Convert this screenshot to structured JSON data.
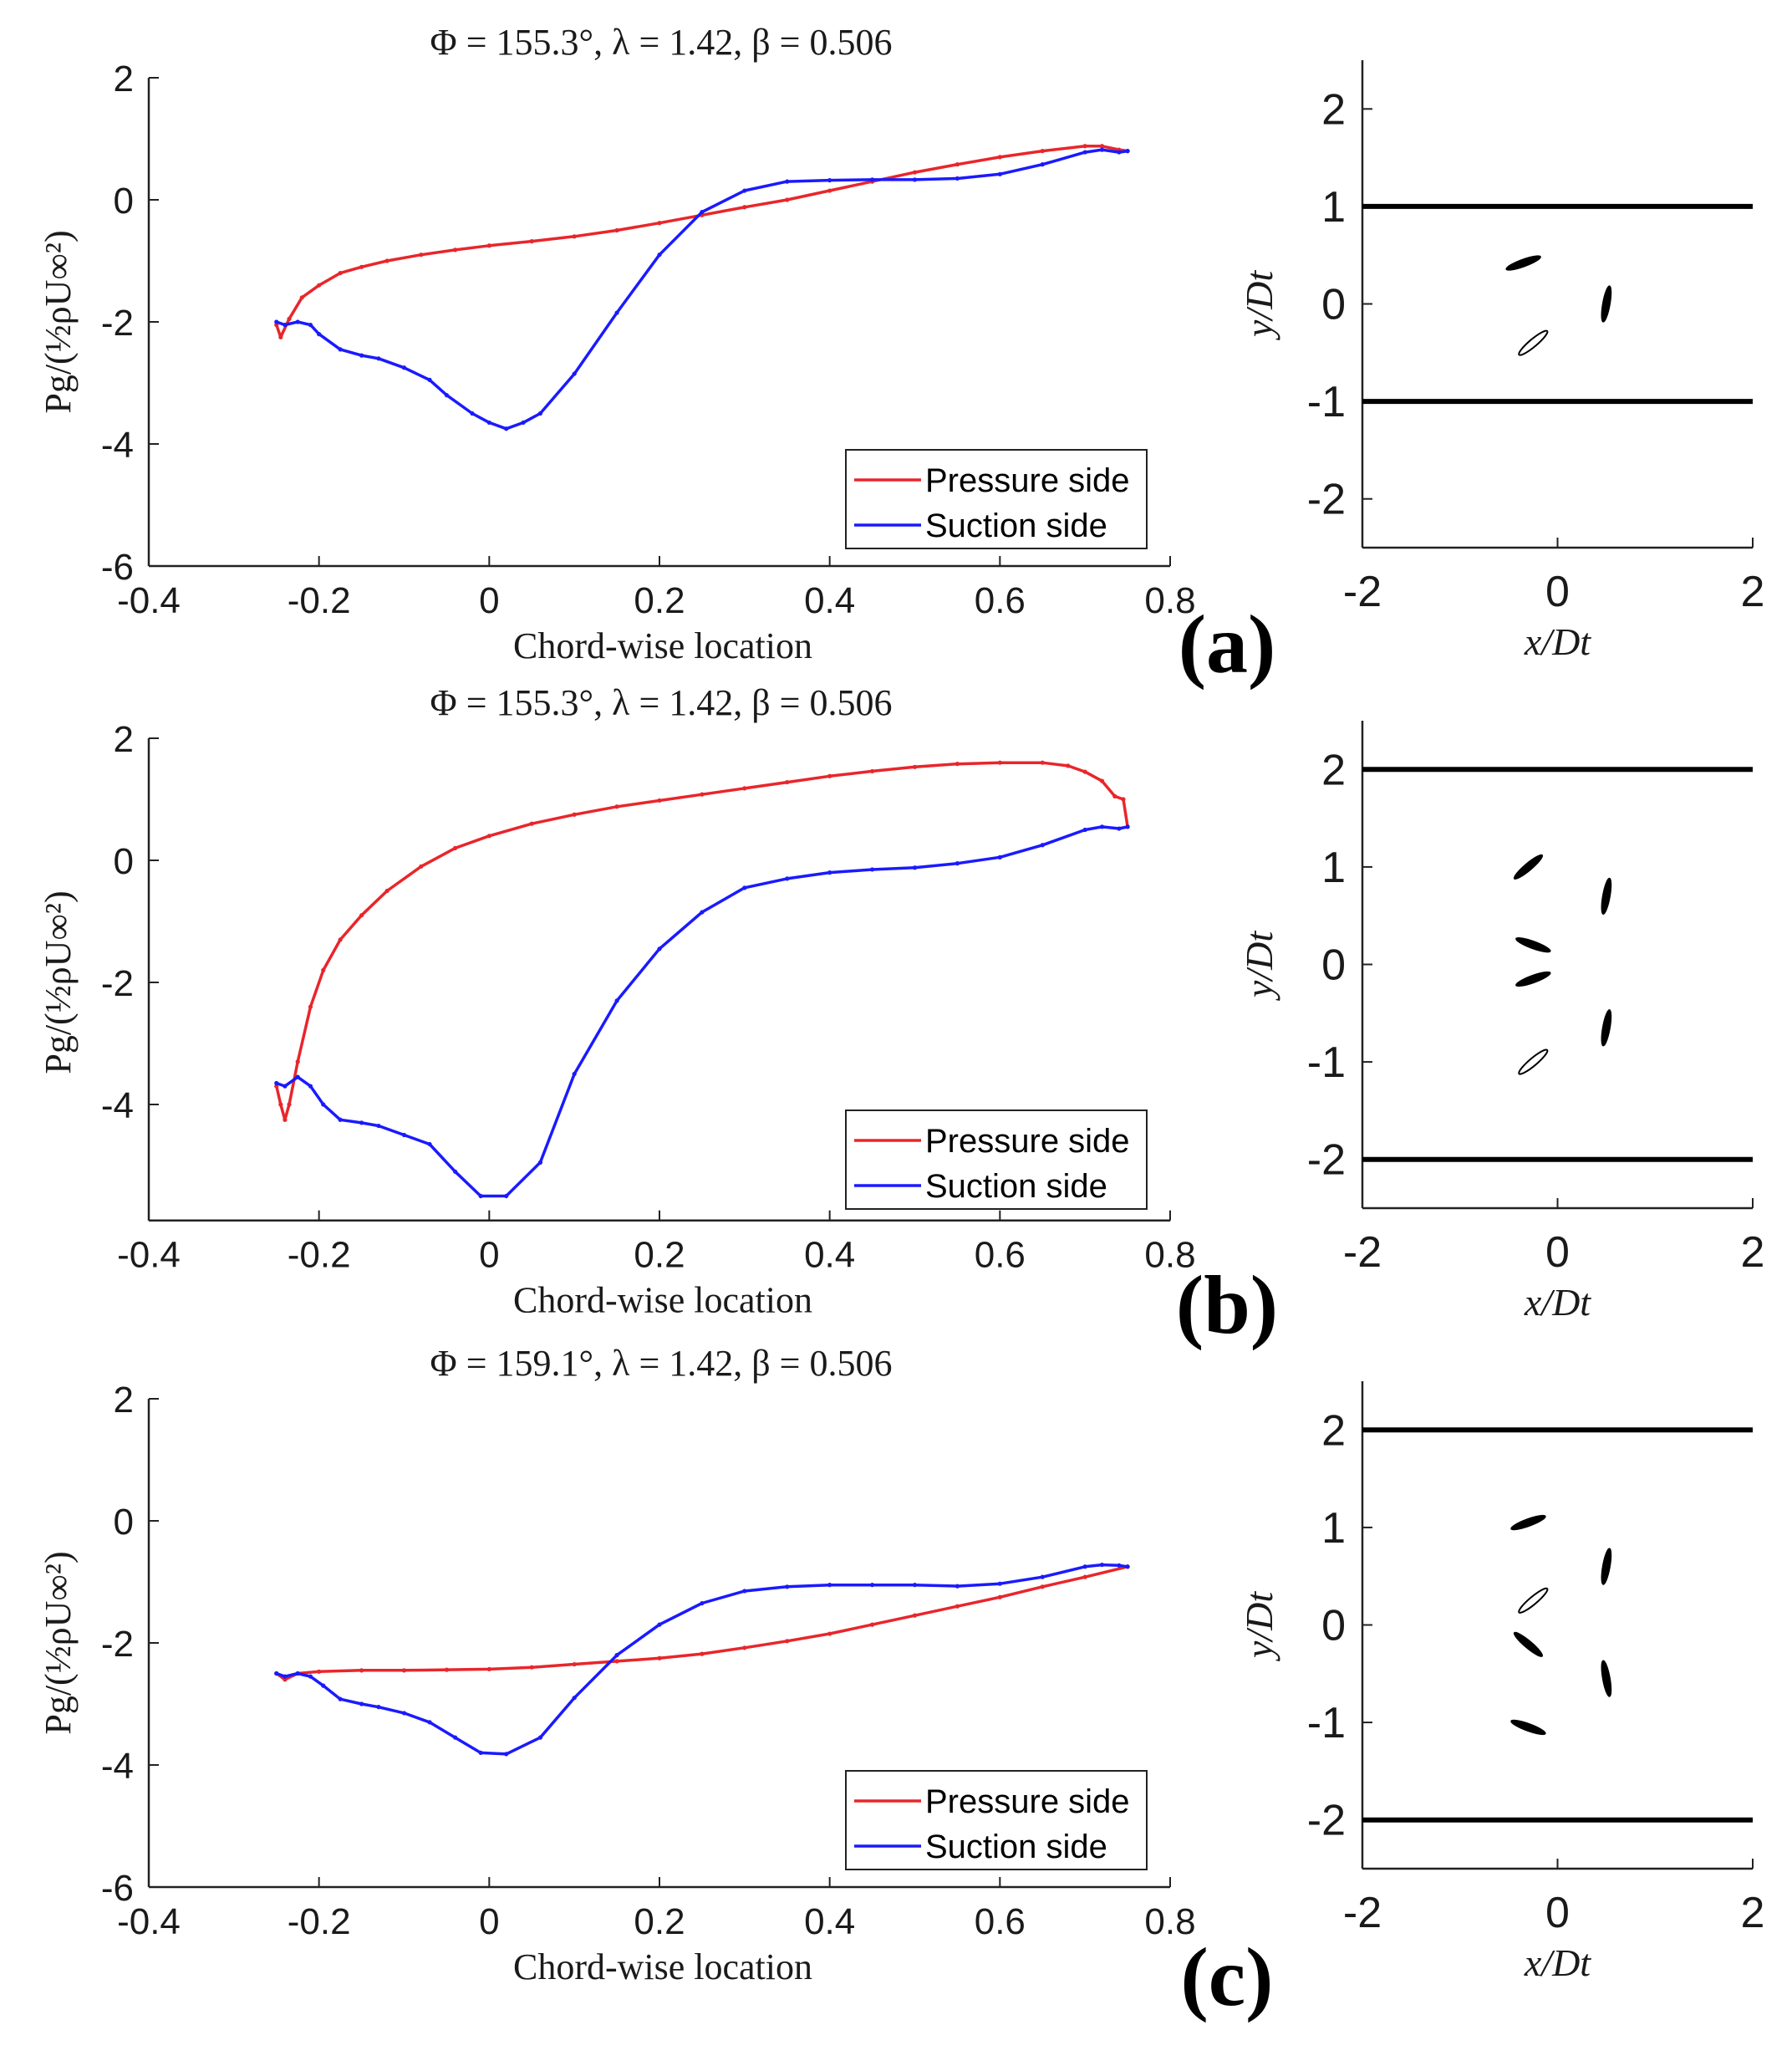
{
  "chart_data": [
    {
      "panel": "(a)",
      "title": "Φ = 155.3°, λ = 1.42, β = 0.506",
      "pressure": {
        "type": "line",
        "xlabel": "Chord-wise location",
        "ylabel": "Pg/(½ρU∞²)",
        "xlim": [
          -0.4,
          0.8
        ],
        "ylim": [
          -6,
          2
        ],
        "xticks": [
          -0.4,
          -0.2,
          0,
          0.2,
          0.4,
          0.6,
          0.8
        ],
        "xtick_labels": [
          "-0.4",
          "-0.2",
          "0",
          "0.2",
          "0.4",
          "0.6",
          "0.8"
        ],
        "yticks": [
          -6,
          -4,
          -2,
          0,
          2
        ],
        "ytick_labels": [
          "-6",
          "-4",
          "-2",
          "0",
          "2"
        ],
        "legend_position": "bottom-right",
        "series": [
          {
            "name": "Pressure side",
            "color": "#e8262b",
            "x": [
              -0.25,
              -0.245,
              -0.235,
              -0.22,
              -0.2,
              -0.175,
              -0.15,
              -0.12,
              -0.08,
              -0.04,
              0.0,
              0.05,
              0.1,
              0.15,
              0.2,
              0.25,
              0.3,
              0.35,
              0.4,
              0.45,
              0.5,
              0.55,
              0.6,
              0.65,
              0.7,
              0.72,
              0.74,
              0.75
            ],
            "y": [
              -2.05,
              -2.25,
              -1.95,
              -1.6,
              -1.4,
              -1.2,
              -1.1,
              -1.0,
              -0.9,
              -0.82,
              -0.75,
              -0.68,
              -0.6,
              -0.5,
              -0.38,
              -0.25,
              -0.12,
              0.0,
              0.15,
              0.3,
              0.45,
              0.58,
              0.7,
              0.8,
              0.88,
              0.88,
              0.82,
              0.8
            ]
          },
          {
            "name": "Suction side",
            "color": "#1a1aff",
            "x": [
              -0.25,
              -0.24,
              -0.225,
              -0.21,
              -0.2,
              -0.175,
              -0.15,
              -0.13,
              -0.1,
              -0.07,
              -0.05,
              -0.02,
              0.0,
              0.02,
              0.04,
              0.06,
              0.1,
              0.15,
              0.2,
              0.25,
              0.3,
              0.35,
              0.4,
              0.45,
              0.5,
              0.55,
              0.6,
              0.65,
              0.7,
              0.72,
              0.74,
              0.75
            ],
            "y": [
              -2.0,
              -2.05,
              -2.0,
              -2.05,
              -2.2,
              -2.45,
              -2.55,
              -2.6,
              -2.75,
              -2.95,
              -3.2,
              -3.5,
              -3.65,
              -3.75,
              -3.65,
              -3.5,
              -2.85,
              -1.85,
              -0.9,
              -0.2,
              0.15,
              0.3,
              0.32,
              0.33,
              0.33,
              0.35,
              0.42,
              0.58,
              0.78,
              0.82,
              0.78,
              0.8
            ]
          }
        ]
      },
      "config": {
        "type": "scatter",
        "xlabel": "x/Dt",
        "ylabel": "y/Dt",
        "xlim": [
          -2,
          2
        ],
        "ylim": [
          -2.5,
          2.5
        ],
        "xticks": [
          -2,
          0,
          2
        ],
        "xtick_labels": [
          "-2",
          "0",
          "2"
        ],
        "yticks": [
          -2,
          -1,
          0,
          1,
          2
        ],
        "ytick_labels": [
          "-2",
          "-1",
          "0",
          "1",
          "2"
        ],
        "walls_y": [
          -1,
          1
        ],
        "blades": [
          {
            "x": -0.35,
            "y": 0.42,
            "angle": 20,
            "filled": true
          },
          {
            "x": 0.5,
            "y": 0.0,
            "angle": 80,
            "filled": true
          },
          {
            "x": -0.25,
            "y": -0.4,
            "angle": 40,
            "filled": false
          }
        ]
      }
    },
    {
      "panel": "(b)",
      "title": "Φ = 155.3°, λ = 1.42, β = 0.506",
      "pressure": {
        "type": "line",
        "xlabel": "Chord-wise location",
        "ylabel": "Pg/(½ρU∞²)",
        "xlim": [
          -0.4,
          0.8
        ],
        "ylim": [
          -6,
          2
        ],
        "xticks": [
          -0.4,
          -0.2,
          0,
          0.2,
          0.4,
          0.6,
          0.8
        ],
        "xtick_labels": [
          "-0.4",
          "-0.2",
          "0",
          "0.2",
          "0.4",
          "0.6",
          "0.8"
        ],
        "yticks": [
          -4,
          -2,
          0,
          2
        ],
        "ytick_labels": [
          "-4",
          "-2",
          "0",
          "2"
        ],
        "legend_position": "bottom-right",
        "series": [
          {
            "name": "Pressure side",
            "color": "#e8262b",
            "x": [
              -0.25,
              -0.245,
              -0.24,
              -0.235,
              -0.225,
              -0.21,
              -0.195,
              -0.175,
              -0.15,
              -0.12,
              -0.08,
              -0.04,
              0.0,
              0.05,
              0.1,
              0.15,
              0.2,
              0.25,
              0.3,
              0.35,
              0.4,
              0.45,
              0.5,
              0.55,
              0.6,
              0.65,
              0.68,
              0.7,
              0.72,
              0.735,
              0.745,
              0.75
            ],
            "y": [
              -3.7,
              -4.0,
              -4.25,
              -4.0,
              -3.3,
              -2.4,
              -1.8,
              -1.3,
              -0.9,
              -0.5,
              -0.1,
              0.2,
              0.4,
              0.6,
              0.75,
              0.88,
              0.98,
              1.08,
              1.18,
              1.28,
              1.38,
              1.46,
              1.53,
              1.58,
              1.6,
              1.6,
              1.55,
              1.45,
              1.3,
              1.05,
              1.0,
              0.55
            ]
          },
          {
            "name": "Suction side",
            "color": "#1a1aff",
            "x": [
              -0.25,
              -0.24,
              -0.225,
              -0.21,
              -0.195,
              -0.175,
              -0.15,
              -0.13,
              -0.1,
              -0.07,
              -0.04,
              -0.01,
              0.02,
              0.06,
              0.1,
              0.15,
              0.2,
              0.25,
              0.3,
              0.35,
              0.4,
              0.45,
              0.5,
              0.55,
              0.6,
              0.65,
              0.7,
              0.72,
              0.74,
              0.75
            ],
            "y": [
              -3.65,
              -3.7,
              -3.55,
              -3.7,
              -4.0,
              -4.25,
              -4.3,
              -4.35,
              -4.5,
              -4.65,
              -5.1,
              -5.5,
              -5.5,
              -4.95,
              -3.5,
              -2.3,
              -1.45,
              -0.85,
              -0.45,
              -0.3,
              -0.2,
              -0.15,
              -0.12,
              -0.05,
              0.05,
              0.25,
              0.5,
              0.55,
              0.52,
              0.55
            ]
          }
        ]
      },
      "config": {
        "type": "scatter",
        "xlabel": "x/Dt",
        "ylabel": "y/Dt",
        "xlim": [
          -2,
          2
        ],
        "ylim": [
          -2.5,
          2.5
        ],
        "xticks": [
          -2,
          0,
          2
        ],
        "xtick_labels": [
          "-2",
          "0",
          "2"
        ],
        "yticks": [
          -2,
          -1,
          0,
          1,
          2
        ],
        "ytick_labels": [
          "-2",
          "-1",
          "0",
          "1",
          "2"
        ],
        "walls_y": [
          -2,
          2
        ],
        "blades": [
          {
            "x": -0.3,
            "y": 1.0,
            "angle": 40,
            "filled": true
          },
          {
            "x": 0.5,
            "y": 0.7,
            "angle": 80,
            "filled": true
          },
          {
            "x": -0.25,
            "y": 0.2,
            "angle": -20,
            "filled": true
          },
          {
            "x": -0.25,
            "y": -0.15,
            "angle": 20,
            "filled": true
          },
          {
            "x": 0.5,
            "y": -0.65,
            "angle": 80,
            "filled": true
          },
          {
            "x": -0.25,
            "y": -1.0,
            "angle": 40,
            "filled": false
          }
        ]
      }
    },
    {
      "panel": "(c)",
      "title": "Φ = 159.1°, λ = 1.42, β = 0.506",
      "pressure": {
        "type": "line",
        "xlabel": "Chord-wise location",
        "ylabel": "Pg/(½ρU∞²)",
        "xlim": [
          -0.4,
          0.8
        ],
        "ylim": [
          -6,
          2
        ],
        "xticks": [
          -0.4,
          -0.2,
          0,
          0.2,
          0.4,
          0.6,
          0.8
        ],
        "xtick_labels": [
          "-0.4",
          "-0.2",
          "0",
          "0.2",
          "0.4",
          "0.6",
          "0.8"
        ],
        "yticks": [
          -6,
          -4,
          -2,
          0,
          2
        ],
        "ytick_labels": [
          "-6",
          "-4",
          "-2",
          "0",
          "2"
        ],
        "legend_position": "bottom-right",
        "series": [
          {
            "name": "Pressure side",
            "color": "#e8262b",
            "x": [
              -0.25,
              -0.24,
              -0.225,
              -0.2,
              -0.15,
              -0.1,
              -0.05,
              0.0,
              0.05,
              0.1,
              0.15,
              0.2,
              0.25,
              0.3,
              0.35,
              0.4,
              0.45,
              0.5,
              0.55,
              0.6,
              0.65,
              0.7,
              0.75
            ],
            "y": [
              -2.5,
              -2.6,
              -2.5,
              -2.47,
              -2.45,
              -2.45,
              -2.44,
              -2.43,
              -2.4,
              -2.35,
              -2.3,
              -2.25,
              -2.18,
              -2.08,
              -1.97,
              -1.85,
              -1.7,
              -1.55,
              -1.4,
              -1.25,
              -1.08,
              -0.92,
              -0.75
            ]
          },
          {
            "name": "Suction side",
            "color": "#1a1aff",
            "x": [
              -0.25,
              -0.24,
              -0.225,
              -0.21,
              -0.195,
              -0.175,
              -0.15,
              -0.13,
              -0.1,
              -0.07,
              -0.04,
              -0.01,
              0.02,
              0.06,
              0.1,
              0.15,
              0.2,
              0.25,
              0.3,
              0.35,
              0.4,
              0.45,
              0.5,
              0.55,
              0.6,
              0.65,
              0.7,
              0.72,
              0.74,
              0.75
            ],
            "y": [
              -2.5,
              -2.55,
              -2.5,
              -2.55,
              -2.7,
              -2.92,
              -3.0,
              -3.05,
              -3.15,
              -3.3,
              -3.55,
              -3.8,
              -3.82,
              -3.55,
              -2.9,
              -2.2,
              -1.7,
              -1.35,
              -1.15,
              -1.08,
              -1.05,
              -1.05,
              -1.05,
              -1.07,
              -1.03,
              -0.92,
              -0.75,
              -0.72,
              -0.73,
              -0.75
            ]
          }
        ]
      },
      "config": {
        "type": "scatter",
        "xlabel": "x/Dt",
        "ylabel": "y/Dt",
        "xlim": [
          -2,
          2
        ],
        "ylim": [
          -2.5,
          2.5
        ],
        "xticks": [
          -2,
          0,
          2
        ],
        "xtick_labels": [
          "-2",
          "0",
          "2"
        ],
        "yticks": [
          -2,
          -1,
          0,
          1,
          2
        ],
        "ytick_labels": [
          "-2",
          "-1",
          "0",
          "1",
          "2"
        ],
        "walls_y": [
          -2,
          2
        ],
        "blades": [
          {
            "x": -0.3,
            "y": 1.05,
            "angle": 20,
            "filled": true
          },
          {
            "x": 0.5,
            "y": 0.6,
            "angle": 80,
            "filled": true
          },
          {
            "x": -0.25,
            "y": 0.25,
            "angle": 40,
            "filled": false
          },
          {
            "x": -0.3,
            "y": -0.2,
            "angle": -40,
            "filled": true
          },
          {
            "x": 0.5,
            "y": -0.55,
            "angle": -80,
            "filled": true
          },
          {
            "x": -0.3,
            "y": -1.05,
            "angle": -20,
            "filled": true
          }
        ]
      }
    }
  ]
}
